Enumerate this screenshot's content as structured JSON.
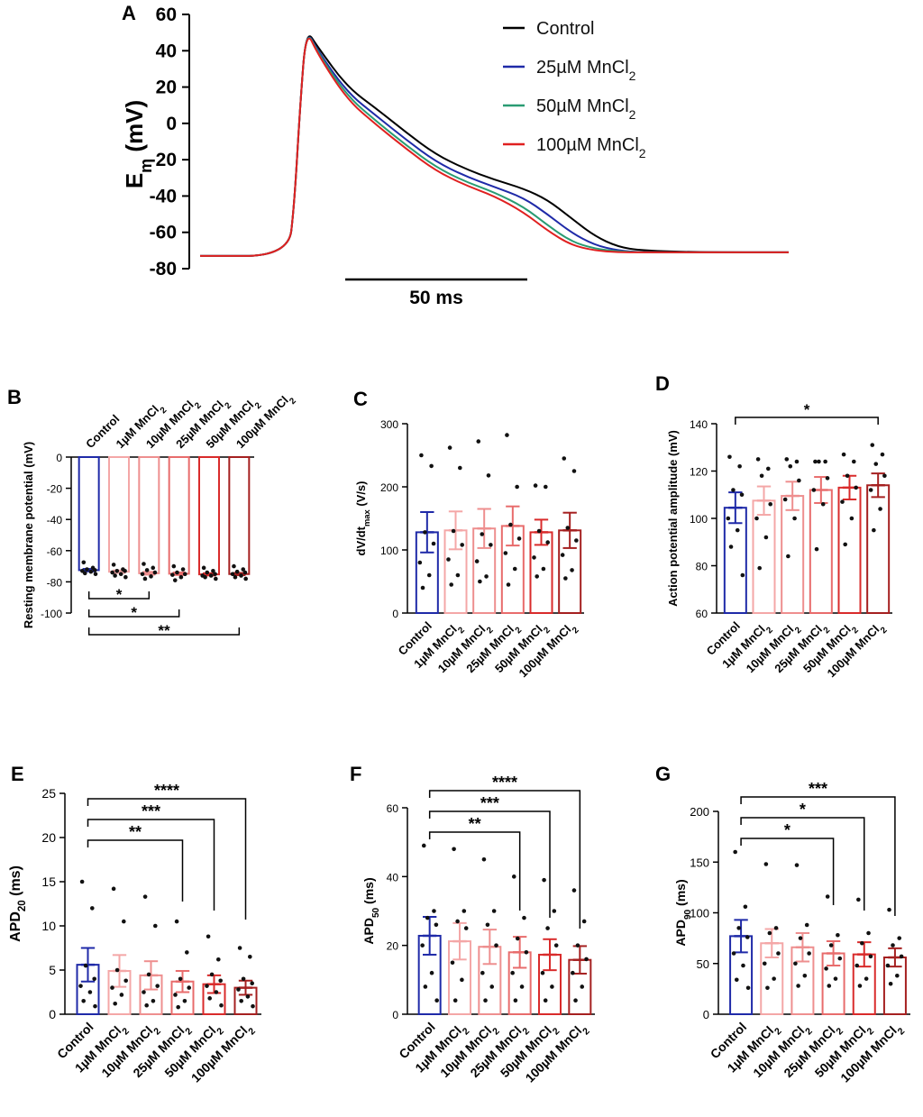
{
  "colors": {
    "control": "#1f2aa8",
    "mn1": "#f4a7a7",
    "mn10": "#ee8f8f",
    "mn25": "#e86c6c",
    "mn50": "#d92b2b",
    "mn100": "#a52020",
    "trace_control": "#000000",
    "trace_25": "#1f2aa8",
    "trace_50": "#2a9c73",
    "trace_100": "#e02020",
    "dot": "#111111"
  },
  "chart_data": [
    {
      "id": "A",
      "type": "line",
      "panel_label": "A",
      "ylabel_main": "E",
      "ylabel_sub": "m",
      "ylabel_unit": " (mV)",
      "ylim": [
        -80,
        60
      ],
      "yticks": [
        "60",
        "40",
        "20",
        "0",
        "-20",
        "-40",
        "-60",
        "-80"
      ],
      "scale_bar_label": "50 ms",
      "legend": [
        {
          "main": "Control",
          "sub": ""
        },
        {
          "main": "25µM MnCl",
          "sub": "2"
        },
        {
          "main": "50µM MnCl",
          "sub": "2"
        },
        {
          "main": "100µM MnCl",
          "sub": "2"
        }
      ],
      "series": [
        {
          "name": "Control",
          "t": [
            0,
            30,
            32,
            34,
            36,
            40,
            50,
            60,
            70,
            80,
            90,
            100,
            110,
            118,
            126,
            134,
            142,
            150,
            170,
            200
          ],
          "v": [
            -73,
            -73,
            -45,
            10,
            52,
            42,
            20,
            8,
            -5,
            -17,
            -25,
            -31,
            -36,
            -42,
            -52,
            -62,
            -68,
            -70,
            -71,
            -71
          ]
        },
        {
          "name": "25µM MnCl2",
          "t": [
            0,
            30,
            32,
            34,
            36,
            40,
            50,
            60,
            70,
            80,
            90,
            100,
            110,
            118,
            126,
            134,
            142,
            150,
            170,
            200
          ],
          "v": [
            -73,
            -73,
            -45,
            10,
            52,
            40,
            17,
            4,
            -9,
            -21,
            -29,
            -35,
            -41,
            -50,
            -60,
            -67,
            -70,
            -71,
            -71,
            -71
          ]
        },
        {
          "name": "50µM MnCl2",
          "t": [
            0,
            30,
            32,
            34,
            36,
            40,
            50,
            60,
            70,
            80,
            90,
            100,
            110,
            118,
            126,
            134,
            142,
            150,
            170,
            200
          ],
          "v": [
            -73,
            -73,
            -45,
            10,
            52,
            39,
            15,
            1,
            -12,
            -24,
            -32,
            -38,
            -46,
            -56,
            -65,
            -69,
            -70.5,
            -71,
            -71,
            -71
          ]
        },
        {
          "name": "100µM MnCl2",
          "t": [
            0,
            30,
            32,
            34,
            36,
            40,
            50,
            60,
            70,
            80,
            90,
            100,
            110,
            118,
            126,
            134,
            142,
            150,
            170,
            200
          ],
          "v": [
            -73,
            -73,
            -45,
            10,
            52,
            38,
            13,
            -1,
            -14,
            -26,
            -34,
            -40,
            -49,
            -59,
            -67,
            -70,
            -71,
            -71,
            -71,
            -71
          ]
        }
      ]
    },
    {
      "id": "B",
      "type": "bar",
      "panel_label": "B",
      "ylabel": "Resting membrane potential (mV)",
      "ylim": [
        -100,
        0
      ],
      "yticks": [
        "0",
        "-20",
        "-40",
        "-60",
        "-80",
        "-100"
      ],
      "categories": [
        {
          "main": "Control",
          "sub": ""
        },
        {
          "main": "1µM MnCl",
          "sub": "2"
        },
        {
          "main": "10µM MnCl",
          "sub": "2"
        },
        {
          "main": "25µM MnCl",
          "sub": "2"
        },
        {
          "main": "50µM MnCl",
          "sub": "2"
        },
        {
          "main": "100µM MnCl",
          "sub": "2"
        }
      ],
      "values": [
        -72.5,
        -73.5,
        -74.5,
        -74.8,
        -75.2,
        -75
      ],
      "errors": [
        0.8,
        0.8,
        0.9,
        0.8,
        0.7,
        0.7
      ],
      "points": [
        [
          -67.5,
          -71,
          -72,
          -72.5,
          -73,
          -73.5,
          -74.5,
          -75
        ],
        [
          -69,
          -72,
          -73,
          -73,
          -74,
          -75,
          -76,
          -77
        ],
        [
          -68.5,
          -71,
          -72.5,
          -74,
          -75,
          -76.5,
          -78
        ],
        [
          -70,
          -72,
          -74,
          -75,
          -75.5,
          -77,
          -79
        ],
        [
          -71,
          -73,
          -74,
          -75,
          -76,
          -76,
          -77,
          -78
        ],
        [
          -70,
          -72,
          -73.5,
          -74,
          -75,
          -76,
          -77,
          -78
        ]
      ],
      "significance": [
        {
          "from": 0,
          "to": 2,
          "label": "*"
        },
        {
          "from": 0,
          "to": 3,
          "label": "*"
        },
        {
          "from": 0,
          "to": 5,
          "label": "**"
        }
      ]
    },
    {
      "id": "C",
      "type": "bar",
      "panel_label": "C",
      "ylabel_main": "dV/dt",
      "ylabel_sub": "max",
      "ylabel_unit": " (V/s)",
      "ylim": [
        0,
        300
      ],
      "yticks": [
        "0",
        "100",
        "200",
        "300"
      ],
      "categories": [
        {
          "main": "Control",
          "sub": ""
        },
        {
          "main": "1µM MnCl",
          "sub": "2"
        },
        {
          "main": "10µM MnCl",
          "sub": "2"
        },
        {
          "main": "25µM MnCl",
          "sub": "2"
        },
        {
          "main": "50µM MnCl",
          "sub": "2"
        },
        {
          "main": "100µM MnCl",
          "sub": "2"
        }
      ],
      "values": [
        128,
        131,
        134,
        138,
        128,
        131
      ],
      "errors": [
        32,
        30,
        31,
        31,
        20,
        28
      ],
      "points": [
        [
          250,
          233,
          128,
          110,
          80,
          60,
          40
        ],
        [
          262,
          230,
          130,
          108,
          85,
          60,
          45
        ],
        [
          272,
          218,
          125,
          108,
          82,
          58,
          50
        ],
        [
          282,
          200,
          140,
          118,
          95,
          70,
          45
        ],
        [
          202,
          200,
          130,
          112,
          88,
          70,
          58
        ],
        [
          245,
          225,
          135,
          115,
          92,
          68,
          55
        ]
      ],
      "significance": []
    },
    {
      "id": "D",
      "type": "bar",
      "panel_label": "D",
      "ylabel": "Action potential amplitude (mV)",
      "ylim": [
        60,
        140
      ],
      "yticks": [
        "60",
        "80",
        "100",
        "120",
        "140"
      ],
      "categories": [
        {
          "main": "Control",
          "sub": ""
        },
        {
          "main": "1µM MnCl",
          "sub": "2"
        },
        {
          "main": "10µM MnCl",
          "sub": "2"
        },
        {
          "main": "25µM MnCl",
          "sub": "2"
        },
        {
          "main": "50µM MnCl",
          "sub": "2"
        },
        {
          "main": "100µM MnCl",
          "sub": "2"
        }
      ],
      "values": [
        104.5,
        107.5,
        109.5,
        112,
        113,
        114
      ],
      "errors": [
        6.5,
        6,
        6,
        5.5,
        5,
        5
      ],
      "points": [
        [
          126,
          122,
          112,
          110,
          100,
          95,
          88,
          76
        ],
        [
          125,
          121,
          118,
          106,
          100,
          92,
          79
        ],
        [
          125,
          124,
          122,
          116,
          108,
          100,
          84
        ],
        [
          124,
          124,
          124,
          117,
          112,
          106,
          87
        ],
        [
          127,
          124,
          118,
          113,
          107,
          100,
          89
        ],
        [
          131,
          127,
          123,
          118,
          112,
          104,
          95
        ]
      ],
      "significance": [
        {
          "from": 0,
          "to": 5,
          "label": "*"
        }
      ]
    },
    {
      "id": "E",
      "type": "bar",
      "panel_label": "E",
      "ylabel_main": "APD",
      "ylabel_sub": "20",
      "ylabel_unit": " (ms)",
      "ylim": [
        0,
        25
      ],
      "yticks": [
        "0",
        "5",
        "10",
        "15",
        "20",
        "25"
      ],
      "categories": [
        {
          "main": "Control",
          "sub": ""
        },
        {
          "main": "1µM MnCl",
          "sub": "2"
        },
        {
          "main": "10µM MnCl",
          "sub": "2"
        },
        {
          "main": "25µM MnCl",
          "sub": "2"
        },
        {
          "main": "50µM MnCl",
          "sub": "2"
        },
        {
          "main": "100µM MnCl",
          "sub": "2"
        }
      ],
      "values": [
        5.6,
        4.9,
        4.4,
        3.7,
        3.4,
        3.0
      ],
      "errors": [
        1.9,
        1.8,
        1.6,
        1.2,
        1.0,
        0.8
      ],
      "points": [
        [
          15,
          12,
          5.5,
          4.0,
          3.2,
          2.5,
          1.5,
          0.9
        ],
        [
          14.2,
          10.5,
          5.0,
          3.8,
          3.0,
          2.2,
          1.2
        ],
        [
          13.3,
          10.0,
          4.5,
          3.2,
          2.5,
          1.5,
          1.0
        ],
        [
          10.5,
          7.0,
          4.0,
          3.0,
          2.2,
          1.5,
          0.8
        ],
        [
          8.8,
          6.2,
          4.5,
          3.8,
          3.2,
          2.5,
          1.8,
          1.0
        ],
        [
          7.5,
          6.5,
          4.0,
          3.5,
          2.8,
          2.0,
          1.5,
          0.9
        ]
      ],
      "significance": [
        {
          "from": 0,
          "to": 3,
          "label": "**"
        },
        {
          "from": 0,
          "to": 4,
          "label": "***"
        },
        {
          "from": 0,
          "to": 5,
          "label": "****"
        }
      ]
    },
    {
      "id": "F",
      "type": "bar",
      "panel_label": "F",
      "ylabel_main": "APD",
      "ylabel_sub": "50",
      "ylabel_unit": " (ms)",
      "ylim": [
        0,
        60
      ],
      "yticks": [
        "0",
        "20",
        "40",
        "60"
      ],
      "categories": [
        {
          "main": "Control",
          "sub": ""
        },
        {
          "main": "1µM MnCl",
          "sub": "2"
        },
        {
          "main": "10µM MnCl",
          "sub": "2"
        },
        {
          "main": "25µM MnCl",
          "sub": "2"
        },
        {
          "main": "50µM MnCl",
          "sub": "2"
        },
        {
          "main": "100µM MnCl",
          "sub": "2"
        }
      ],
      "values": [
        22.8,
        21.2,
        19.6,
        18.0,
        17.3,
        15.8
      ],
      "errors": [
        5.5,
        5.3,
        5.0,
        4.5,
        4.5,
        4.0
      ],
      "points": [
        [
          49,
          30,
          28,
          26,
          20,
          12,
          8,
          4
        ],
        [
          48,
          30,
          27,
          25,
          15,
          10,
          4
        ],
        [
          45,
          30,
          26,
          20,
          12,
          8,
          4
        ],
        [
          40,
          28,
          22,
          18,
          12,
          8,
          4
        ],
        [
          39,
          30,
          25,
          20,
          12,
          8,
          4
        ],
        [
          36,
          27,
          20,
          16,
          12,
          8,
          4
        ]
      ],
      "significance": [
        {
          "from": 0,
          "to": 3,
          "label": "**"
        },
        {
          "from": 0,
          "to": 4,
          "label": "***"
        },
        {
          "from": 0,
          "to": 5,
          "label": "****"
        }
      ]
    },
    {
      "id": "G",
      "type": "bar",
      "panel_label": "G",
      "ylabel_main": "APD",
      "ylabel_sub": "90",
      "ylabel_unit": " (ms)",
      "ylim": [
        0,
        200
      ],
      "yticks": [
        "0",
        "50",
        "100",
        "150",
        "200"
      ],
      "categories": [
        {
          "main": "Control",
          "sub": ""
        },
        {
          "main": "1µM MnCl",
          "sub": "2"
        },
        {
          "main": "10µM MnCl",
          "sub": "2"
        },
        {
          "main": "25µM MnCl",
          "sub": "2"
        },
        {
          "main": "50µM MnCl",
          "sub": "2"
        },
        {
          "main": "100µM MnCl",
          "sub": "2"
        }
      ],
      "values": [
        77,
        70,
        66,
        60,
        59,
        56
      ],
      "errors": [
        16,
        14,
        14,
        12,
        12,
        9
      ],
      "points": [
        [
          160,
          106,
          85,
          76,
          60,
          48,
          34,
          26
        ],
        [
          148,
          85,
          80,
          60,
          50,
          35,
          26
        ],
        [
          147,
          88,
          75,
          60,
          50,
          38,
          28
        ],
        [
          116,
          78,
          68,
          55,
          45,
          35,
          28
        ],
        [
          113,
          80,
          70,
          57,
          48,
          35,
          28
        ],
        [
          103,
          75,
          68,
          57,
          48,
          38,
          30
        ]
      ],
      "significance": [
        {
          "from": 0,
          "to": 3,
          "label": "*"
        },
        {
          "from": 0,
          "to": 4,
          "label": "*"
        },
        {
          "from": 0,
          "to": 5,
          "label": "***"
        }
      ]
    }
  ]
}
